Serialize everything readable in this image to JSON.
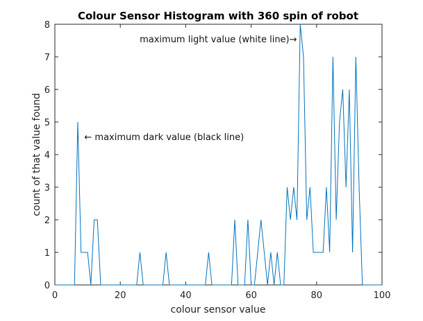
{
  "chart_data": {
    "type": "line",
    "title": "Colour Sensor Histogram with 360 spin of robot",
    "xlabel": "colour sensor value",
    "ylabel": "count of that value found",
    "xlim": [
      0,
      100
    ],
    "ylim": [
      0,
      8
    ],
    "xticks": [
      0,
      20,
      40,
      60,
      80,
      100
    ],
    "yticks": [
      0,
      1,
      2,
      3,
      4,
      5,
      6,
      7,
      8
    ],
    "grid": false,
    "line_color": "#0072BD",
    "series": [
      {
        "x": [
          0,
          1,
          2,
          3,
          4,
          5,
          6,
          7,
          8,
          9,
          10,
          11,
          12,
          13,
          14,
          15,
          16,
          17,
          18,
          19,
          20,
          21,
          22,
          23,
          24,
          25,
          26,
          27,
          28,
          29,
          30,
          31,
          32,
          33,
          34,
          35,
          36,
          37,
          38,
          39,
          40,
          41,
          42,
          43,
          44,
          45,
          46,
          47,
          48,
          49,
          50,
          51,
          52,
          53,
          54,
          55,
          56,
          57,
          58,
          59,
          60,
          61,
          62,
          63,
          64,
          65,
          66,
          67,
          68,
          69,
          70,
          71,
          72,
          73,
          74,
          75,
          76,
          77,
          78,
          79,
          80,
          81,
          82,
          83,
          84,
          85,
          86,
          87,
          88,
          89,
          90,
          91,
          92,
          93,
          94,
          95,
          96,
          97,
          98,
          99,
          100
        ],
        "y": [
          0,
          0,
          0,
          0,
          0,
          0,
          0,
          5,
          1,
          1,
          1,
          0,
          2,
          2,
          0,
          0,
          0,
          0,
          0,
          0,
          0,
          0,
          0,
          0,
          0,
          0,
          1,
          0,
          0,
          0,
          0,
          0,
          0,
          0,
          1,
          0,
          0,
          0,
          0,
          0,
          0,
          0,
          0,
          0,
          0,
          0,
          0,
          1,
          0,
          0,
          0,
          0,
          0,
          0,
          0,
          2,
          0,
          0,
          0,
          2,
          0,
          0,
          1,
          2,
          1,
          0,
          1,
          0,
          1,
          0,
          0,
          3,
          2,
          3,
          2,
          8,
          7,
          2,
          3,
          1,
          1,
          1,
          1,
          3,
          1,
          7,
          2,
          5,
          6,
          3,
          6,
          1,
          7,
          3,
          0,
          0,
          0,
          0,
          0,
          0,
          0
        ]
      }
    ],
    "annotations": [
      {
        "text": "maximum light value (white line)→",
        "x": 74,
        "y": 7.45,
        "anchor": "end"
      },
      {
        "text": "← maximum dark value (black line)",
        "x": 9,
        "y": 4.45,
        "anchor": "start"
      }
    ]
  }
}
